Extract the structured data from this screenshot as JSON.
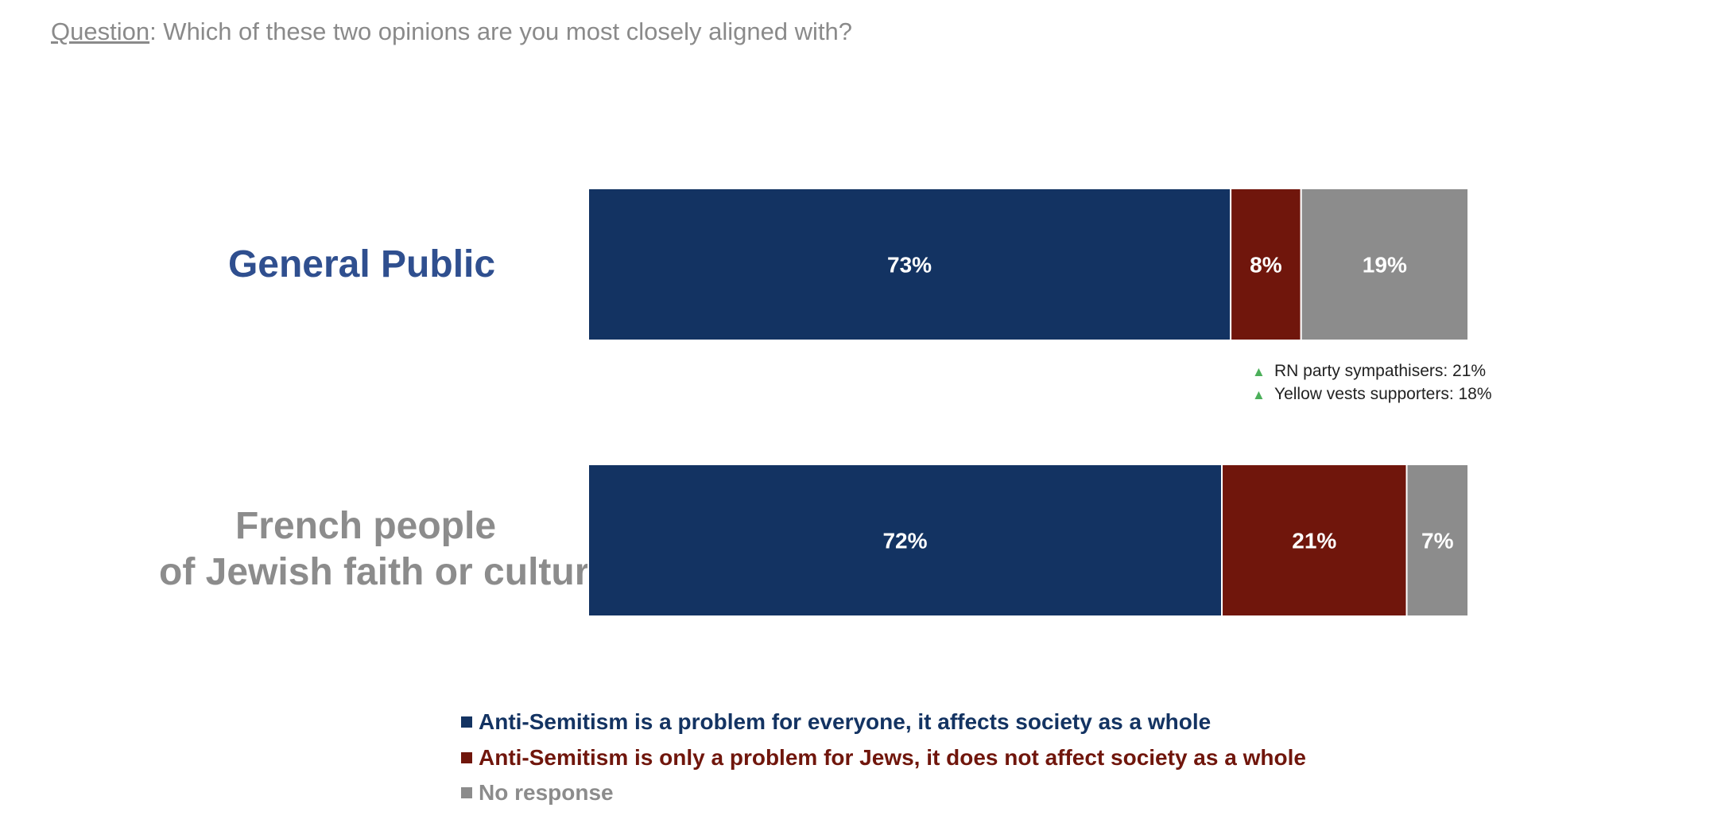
{
  "question": {
    "label": "Question",
    "text": ":  Which of these two opinions are you most closely aligned with?"
  },
  "chart_data": {
    "type": "bar",
    "orientation": "horizontal",
    "stacked": true,
    "categories": [
      "General Public",
      "French people of Jewish faith or culture"
    ],
    "category_lines": [
      [
        "General Public"
      ],
      [
        "French people",
        "of Jewish faith or culture"
      ]
    ],
    "category_colors": [
      "#2f4f8f",
      "#8c8c8c"
    ],
    "series": [
      {
        "name": "Anti-Semitism is a problem for everyone, it affects society as a whole",
        "values": [
          73,
          72
        ],
        "labels": [
          "73%",
          "72%"
        ],
        "color": "#133362"
      },
      {
        "name": "Anti-Semitism is only a problem for Jews, it does not affect society as a whole",
        "values": [
          8,
          21
        ],
        "labels": [
          "8%",
          "21%"
        ],
        "color": "#70160c"
      },
      {
        "name": "No response",
        "values": [
          19,
          7
        ],
        "labels": [
          "19%",
          "7%"
        ],
        "color": "#8c8c8c"
      }
    ],
    "xlim": [
      0,
      100
    ],
    "grid": false,
    "legend_position": "bottom",
    "annotations": [
      {
        "icon": "up-triangle-icon",
        "text": "RN party sympathisers: 21%"
      },
      {
        "icon": "up-triangle-icon",
        "text": "Yellow vests supporters: 18%"
      }
    ],
    "annotation_color": "#4caf5a"
  }
}
